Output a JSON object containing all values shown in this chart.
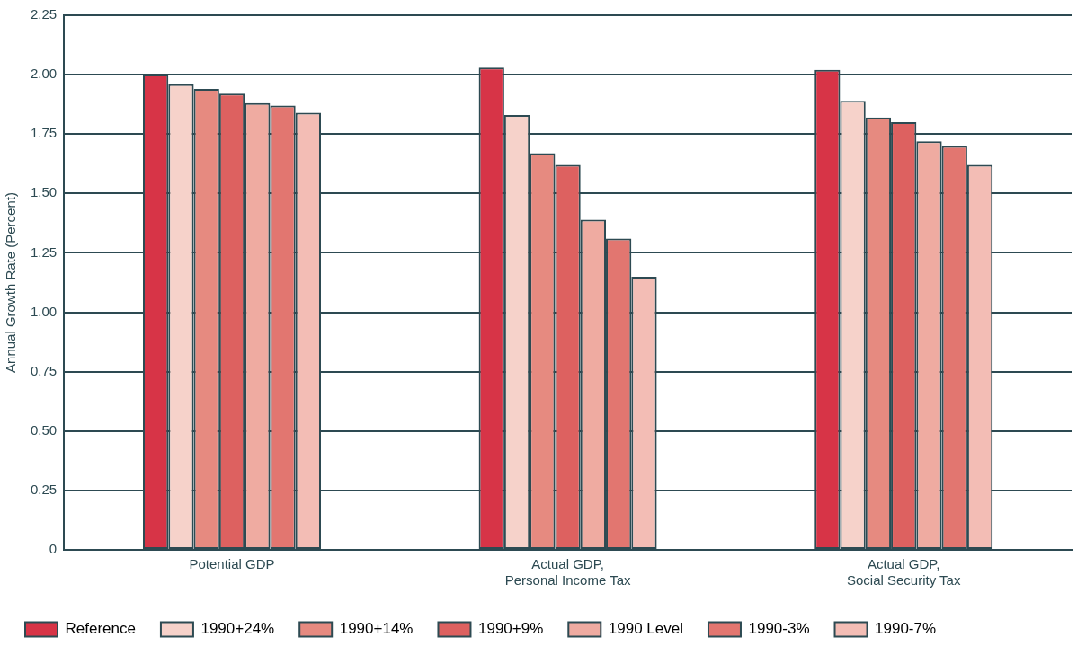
{
  "chart_data": {
    "type": "bar",
    "ylabel": "Annual Growth Rate (Percent)",
    "categories": [
      "Potential GDP",
      "Actual GDP,\nPersonal Income Tax",
      "Actual GDP,\nSocial Security Tax"
    ],
    "series": [
      {
        "name": "Reference",
        "color": "#d73447",
        "values": [
          2.0,
          2.03,
          2.02
        ]
      },
      {
        "name": "1990+24%",
        "color": "#f6d2ca",
        "values": [
          1.96,
          1.83,
          1.89
        ]
      },
      {
        "name": "1990+14%",
        "color": "#e68a80",
        "values": [
          1.94,
          1.67,
          1.82
        ]
      },
      {
        "name": "1990+9%",
        "color": "#dd6160",
        "values": [
          1.92,
          1.62,
          1.8
        ]
      },
      {
        "name": "1990 Level",
        "color": "#efaba1",
        "values": [
          1.88,
          1.39,
          1.72
        ]
      },
      {
        "name": "1990-3%",
        "color": "#e27670",
        "values": [
          1.87,
          1.31,
          1.7
        ]
      },
      {
        "name": "1990-7%",
        "color": "#f3bdb5",
        "values": [
          1.84,
          1.15,
          1.62
        ]
      }
    ],
    "ylim": [
      0,
      2.25
    ],
    "yticks": [
      {
        "value": 0,
        "label": "0"
      },
      {
        "value": 0.25,
        "label": "0.25"
      },
      {
        "value": 0.5,
        "label": "0.50"
      },
      {
        "value": 0.75,
        "label": "0.75"
      },
      {
        "value": 1,
        "label": "1.00"
      },
      {
        "value": 1.25,
        "label": "1.25"
      },
      {
        "value": 1.5,
        "label": "1.50"
      },
      {
        "value": 1.75,
        "label": "1.75"
      },
      {
        "value": 2,
        "label": "2.00"
      },
      {
        "value": 2.25,
        "label": "2.25"
      }
    ],
    "grid": "y",
    "legend": "bottom"
  }
}
